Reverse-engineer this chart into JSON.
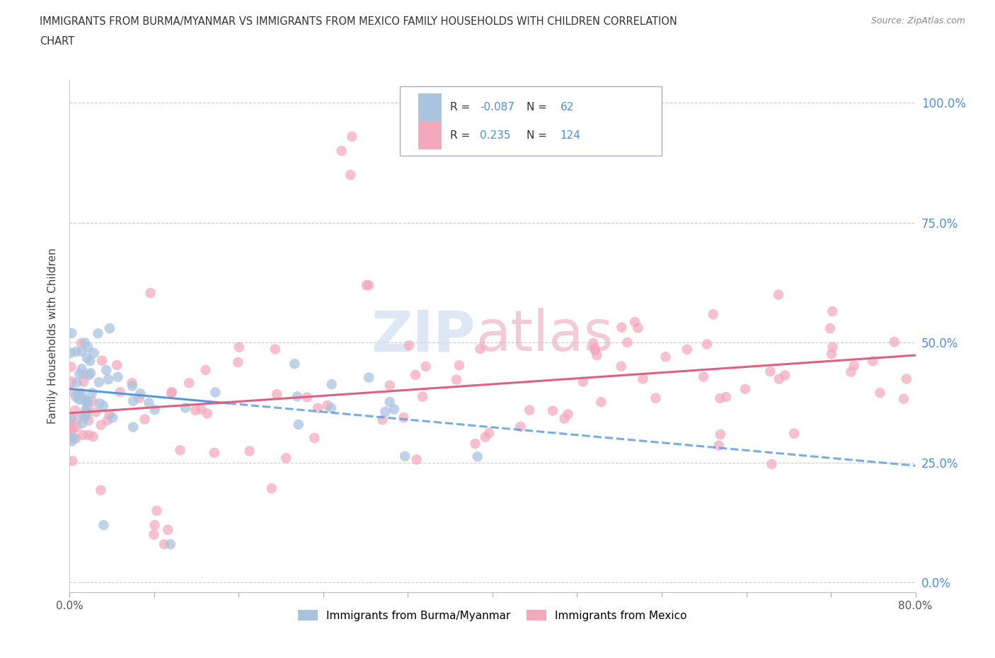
{
  "title_line1": "IMMIGRANTS FROM BURMA/MYANMAR VS IMMIGRANTS FROM MEXICO FAMILY HOUSEHOLDS WITH CHILDREN CORRELATION",
  "title_line2": "CHART",
  "source": "Source: ZipAtlas.com",
  "ylabel": "Family Households with Children",
  "ytick_labels": [
    "0.0%",
    "25.0%",
    "50.0%",
    "75.0%",
    "100.0%"
  ],
  "ytick_vals": [
    0.0,
    0.25,
    0.5,
    0.75,
    1.0
  ],
  "xtick_labels": [
    "0.0%",
    "",
    "",
    "",
    "",
    "",
    "",
    "",
    "",
    "",
    "80.0%"
  ],
  "xlim": [
    0.0,
    0.8
  ],
  "ylim": [
    -0.02,
    1.05
  ],
  "color_burma": "#aac4e0",
  "color_mexico": "#f4a8bc",
  "line_color_burma": "#5599dd",
  "line_color_mexico": "#e06080",
  "watermark_color": "#d0dff0",
  "watermark_color2": "#e8a0b8",
  "background_color": "#ffffff",
  "legend_burma_r": "-0.087",
  "legend_burma_n": "62",
  "legend_mexico_r": "0.235",
  "legend_mexico_n": "124",
  "label_burma": "Immigrants from Burma/Myanmar",
  "label_mexico": "Immigrants from Mexico"
}
